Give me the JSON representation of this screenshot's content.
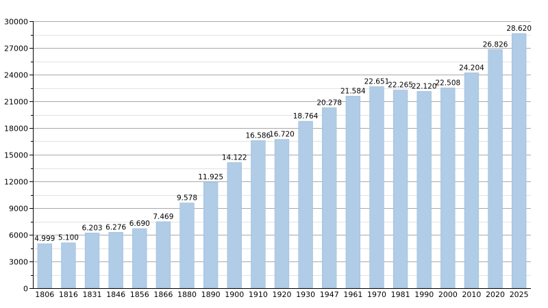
{
  "chart_data": {
    "type": "bar",
    "title": "",
    "xlabel": "",
    "ylabel": "",
    "categories": [
      "1806",
      "1816",
      "1831",
      "1846",
      "1856",
      "1866",
      "1880",
      "1890",
      "1900",
      "1910",
      "1920",
      "1930",
      "1947",
      "1961",
      "1970",
      "1981",
      "1990",
      "2000",
      "2010",
      "2020",
      "2025"
    ],
    "values": [
      4999,
      5100,
      6203,
      6276,
      6690,
      7469,
      9578,
      11925,
      14122,
      16586,
      16720,
      18764,
      20278,
      21584,
      22651,
      22265,
      22120,
      22508,
      24204,
      26826,
      28620
    ],
    "data_labels": [
      "4.999",
      "5.100",
      "6.203",
      "6.276",
      "6.690",
      "7.469",
      "9.578",
      "11.925",
      "14.122",
      "16.586",
      "16.720",
      "18.764",
      "20.278",
      "21.584",
      "22.651",
      "22.265",
      "22.120",
      "22.508",
      "24.204",
      "26.826",
      "28.620"
    ],
    "ylim": [
      0,
      30000
    ],
    "yticks": [
      0,
      3000,
      6000,
      9000,
      12000,
      15000,
      18000,
      21000,
      24000,
      27000,
      30000
    ],
    "ytick_labels": [
      "0",
      "3000",
      "6000",
      "9000",
      "12000",
      "15000",
      "18000",
      "21000",
      "24000",
      "27000",
      "30000"
    ],
    "grid": true,
    "legend": "none",
    "colors": {
      "bar": "#b0cce6",
      "bar_edge": "#9dbcd9",
      "grid_major": "#a8a8a8",
      "grid_minor": "#e2e2e2",
      "axis": "#000000"
    }
  }
}
